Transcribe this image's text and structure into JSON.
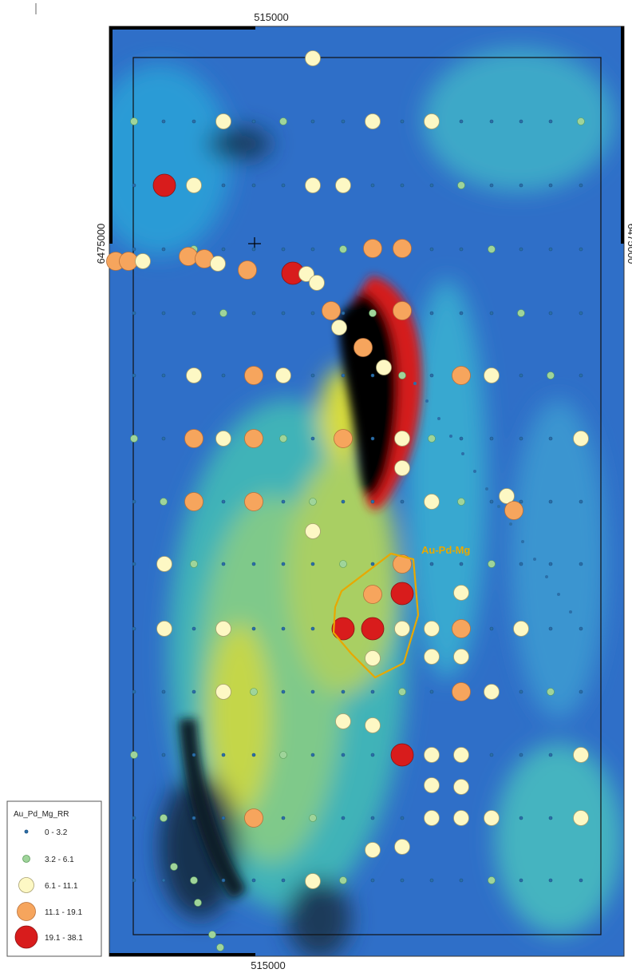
{
  "map": {
    "top_easting": "515000",
    "bottom_easting": "515000",
    "left_northing": "6475000",
    "right_northing": "6475000",
    "annotation": "Au-Pd-Mg",
    "legend": {
      "title": "Au_Pd_Mg_RR",
      "entries": [
        "0 - 3.2",
        "3.2 - 6.1",
        "6.1 - 11.1",
        "11.1 - 19.1",
        "19.1 - 38.1"
      ]
    }
  }
}
